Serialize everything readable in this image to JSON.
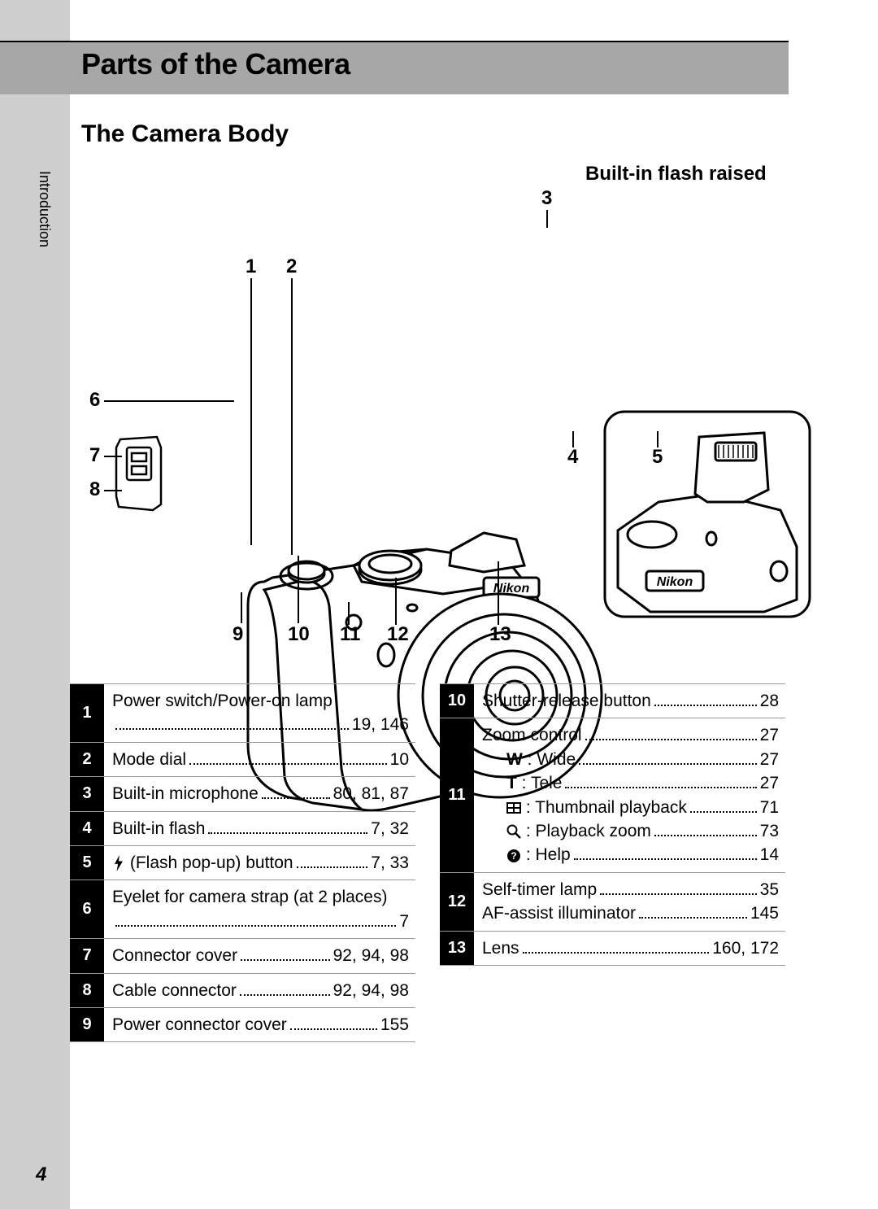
{
  "page_number": "4",
  "side_label": "Introduction",
  "header_title": "Parts of the Camera",
  "section_title": "The Camera Body",
  "flash_label": "Built-in flash raised",
  "callouts": {
    "c1": "1",
    "c2": "2",
    "c3": "3",
    "c4": "4",
    "c5": "5",
    "c6": "6",
    "c7": "7",
    "c8": "8",
    "c9": "9",
    "c10": "10",
    "c11": "11",
    "c12": "12",
    "c13": "13"
  },
  "table_left": [
    {
      "n": "1",
      "lines": [
        {
          "label": "Power switch/Power-on lamp",
          "page": ""
        },
        {
          "label": "",
          "page": "19, 146"
        }
      ]
    },
    {
      "n": "2",
      "lines": [
        {
          "label": "Mode dial",
          "page": "10"
        }
      ]
    },
    {
      "n": "3",
      "lines": [
        {
          "label": "Built-in microphone",
          "page": "80, 81, 87"
        }
      ]
    },
    {
      "n": "4",
      "lines": [
        {
          "label": "Built-in flash",
          "page": "7, 32"
        }
      ]
    },
    {
      "n": "5",
      "lines": [
        {
          "label": "⚡ (Flash pop-up) button",
          "page": "7, 33"
        }
      ]
    },
    {
      "n": "6",
      "lines": [
        {
          "label": "Eyelet for camera strap (at 2 places)",
          "page": ""
        },
        {
          "label": "",
          "page": "7"
        }
      ]
    },
    {
      "n": "7",
      "lines": [
        {
          "label": "Connector cover",
          "page": "92, 94, 98"
        }
      ]
    },
    {
      "n": "8",
      "lines": [
        {
          "label": "Cable connector",
          "page": "92, 94, 98"
        }
      ]
    },
    {
      "n": "9",
      "lines": [
        {
          "label": "Power connector cover",
          "page": "155"
        }
      ]
    }
  ],
  "table_right": [
    {
      "n": "10",
      "lines": [
        {
          "label": "Shutter-release button",
          "page": "28"
        }
      ]
    },
    {
      "n": "11",
      "lines": [
        {
          "label": "Zoom control",
          "page": "27"
        },
        {
          "label": "W : Wide",
          "page": "27",
          "indent": true,
          "bold_prefix": "W"
        },
        {
          "label": "T : Tele",
          "page": "27",
          "indent": true,
          "bold_prefix": "T"
        },
        {
          "label": "▦ : Thumbnail playback",
          "page": "71",
          "indent": true
        },
        {
          "label": "🔍 : Playback zoom",
          "page": "73",
          "indent": true
        },
        {
          "label": "❓ : Help",
          "page": "14",
          "indent": true
        }
      ]
    },
    {
      "n": "12",
      "lines": [
        {
          "label": "Self-timer lamp",
          "page": "35"
        },
        {
          "label": "AF-assist illuminator",
          "page": "145"
        }
      ]
    },
    {
      "n": "13",
      "lines": [
        {
          "label": "Lens",
          "page": "160, 172"
        }
      ]
    }
  ],
  "colors": {
    "header_bg": "#a7a7a7",
    "sidebar_bg": "#cfcfcf",
    "num_bg": "#000000",
    "num_fg": "#ffffff"
  }
}
